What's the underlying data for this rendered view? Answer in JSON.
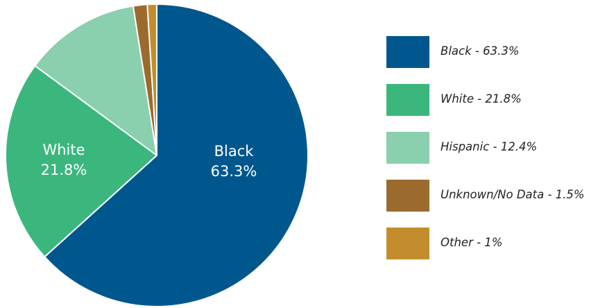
{
  "chart_data": {
    "type": "pie",
    "categories": [
      "Black",
      "White",
      "Hispanic",
      "Unknown/No Data",
      "Other"
    ],
    "values": [
      63.3,
      21.8,
      12.4,
      1.5,
      1
    ],
    "colors": [
      "#00578e",
      "#3bb77e",
      "#8acfae",
      "#9a6b2c",
      "#c38d2e"
    ],
    "slice_labels": [
      {
        "name": "Black",
        "value": "63.3%"
      },
      {
        "name": "White",
        "value": "21.8%"
      }
    ],
    "legend": {
      "position": "right",
      "items": [
        {
          "label": "Black - 63.3%",
          "color": "#00578e"
        },
        {
          "label": "White - 21.8%",
          "color": "#3bb77e"
        },
        {
          "label": "Hispanic - 12.4%",
          "color": "#8acfae"
        },
        {
          "label": "Unknown/No Data - 1.5%",
          "color": "#9a6b2c"
        },
        {
          "label": "Other - 1%",
          "color": "#c38d2e"
        }
      ]
    },
    "start_angle": "12 o'clock",
    "direction": "clockwise"
  }
}
